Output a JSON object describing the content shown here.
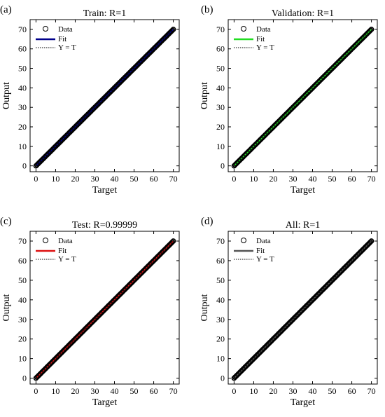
{
  "chart_data": [
    {
      "panel": "(a)",
      "type": "scatter",
      "title": "Train: R=1",
      "xlabel": "Target",
      "ylabel": "Output",
      "xlim": [
        -3,
        73
      ],
      "ylim": [
        -3,
        75
      ],
      "xticks": [
        0,
        10,
        20,
        30,
        40,
        50,
        60,
        70
      ],
      "yticks": [
        0,
        10,
        20,
        30,
        40,
        50,
        60,
        70
      ],
      "legend": {
        "position": "top-left",
        "entries": [
          "Data",
          "Fit",
          "Y = T"
        ]
      },
      "fit_color": "#00008b",
      "points": {
        "x_start": 0,
        "x_end": 70,
        "relation": "Y = T"
      },
      "fit_line": {
        "x": [
          0,
          70
        ],
        "y": [
          0,
          70
        ]
      },
      "identity_line": {
        "x": [
          0,
          70
        ],
        "y": [
          0,
          70
        ]
      }
    },
    {
      "panel": "(b)",
      "type": "scatter",
      "title": "Validation: R=1",
      "xlabel": "Target",
      "ylabel": "Output",
      "xlim": [
        -3,
        73
      ],
      "ylim": [
        -3,
        75
      ],
      "xticks": [
        0,
        10,
        20,
        30,
        40,
        50,
        60,
        70
      ],
      "yticks": [
        0,
        10,
        20,
        30,
        40,
        50,
        60,
        70
      ],
      "legend": {
        "position": "top-left",
        "entries": [
          "Data",
          "Fit",
          "Y = T"
        ]
      },
      "fit_color": "#22dd22",
      "points": {
        "x_start": 0,
        "x_end": 70,
        "relation": "Y = T"
      },
      "fit_line": {
        "x": [
          0,
          70
        ],
        "y": [
          0,
          70
        ]
      },
      "identity_line": {
        "x": [
          0,
          70
        ],
        "y": [
          0,
          70
        ]
      }
    },
    {
      "panel": "(c)",
      "type": "scatter",
      "title": "Test: R=0.99999",
      "xlabel": "Target",
      "ylabel": "Output",
      "xlim": [
        -3,
        73
      ],
      "ylim": [
        -3,
        75
      ],
      "xticks": [
        0,
        10,
        20,
        30,
        40,
        50,
        60,
        70
      ],
      "yticks": [
        0,
        10,
        20,
        30,
        40,
        50,
        60,
        70
      ],
      "legend": {
        "position": "top-left",
        "entries": [
          "Data",
          "Fit",
          "Y = T"
        ]
      },
      "fit_color": "#dd1111",
      "points": {
        "x_start": 0,
        "x_end": 70,
        "relation": "Y = T"
      },
      "fit_line": {
        "x": [
          0,
          70
        ],
        "y": [
          0,
          70
        ]
      },
      "identity_line": {
        "x": [
          0,
          70
        ],
        "y": [
          0,
          70
        ]
      }
    },
    {
      "panel": "(d)",
      "type": "scatter",
      "title": "All: R=1",
      "xlabel": "Target",
      "ylabel": "Output",
      "xlim": [
        -3,
        73
      ],
      "ylim": [
        -3,
        75
      ],
      "xticks": [
        0,
        10,
        20,
        30,
        40,
        50,
        60,
        70
      ],
      "yticks": [
        0,
        10,
        20,
        30,
        40,
        50,
        60,
        70
      ],
      "legend": {
        "position": "top-left",
        "entries": [
          "Data",
          "Fit",
          "Y = T"
        ]
      },
      "fit_color": "#555555",
      "points": {
        "x_start": 0,
        "x_end": 70,
        "relation": "Y = T"
      },
      "fit_line": {
        "x": [
          0,
          70
        ],
        "y": [
          0,
          70
        ]
      },
      "identity_line": {
        "x": [
          0,
          70
        ],
        "y": [
          0,
          70
        ]
      }
    }
  ]
}
